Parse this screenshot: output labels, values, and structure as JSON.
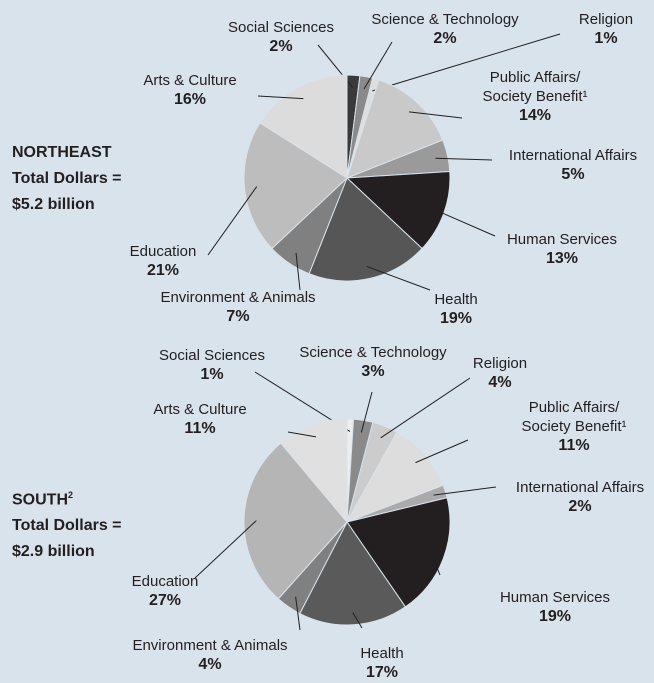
{
  "chart_data": [
    {
      "type": "pie",
      "title": "NORTHEAST",
      "subtitle": [
        "Total Dollars =",
        "$5.2 billion"
      ],
      "categories": [
        "Social Sciences",
        "Science & Technology",
        "Religion",
        "Public Affairs/ Society Benefit¹",
        "International Affairs",
        "Human Services",
        "Health",
        "Environment & Animals",
        "Education",
        "Arts & Culture"
      ],
      "values": [
        2,
        2,
        1,
        14,
        5,
        13,
        19,
        7,
        21,
        16
      ],
      "value_labels": [
        "2%",
        "2%",
        "1%",
        "14%",
        "5%",
        "13%",
        "19%",
        "7%",
        "21%",
        "16%"
      ],
      "colors": [
        "#3a3a3a",
        "#8a8a8a",
        "#dedede",
        "#c9c9c9",
        "#9a9a9a",
        "#231f20",
        "#565656",
        "#808080",
        "#bdbdbd",
        "#dcdcdc"
      ]
    },
    {
      "type": "pie",
      "title": "SOUTH",
      "title_footnote": "2",
      "subtitle": [
        "Total Dollars =",
        "$2.9 billion"
      ],
      "categories": [
        "Social Sciences",
        "Science & Technology",
        "Religion",
        "Public Affairs/ Society Benefit¹",
        "International Affairs",
        "Human Services",
        "Health",
        "Environment & Animals",
        "Education",
        "Arts & Culture"
      ],
      "values": [
        1,
        3,
        4,
        11,
        2,
        19,
        17,
        4,
        27,
        11
      ],
      "value_labels": [
        "1%",
        "3%",
        "4%",
        "11%",
        "2%",
        "19%",
        "17%",
        "4%",
        "27%",
        "11%"
      ],
      "colors": [
        "#eeeeee",
        "#8a8a8a",
        "#cccccc",
        "#dddddd",
        "#aaaaaa",
        "#231f20",
        "#5a5a5a",
        "#808080",
        "#b5b5b5",
        "#e0e0e0"
      ]
    }
  ]
}
